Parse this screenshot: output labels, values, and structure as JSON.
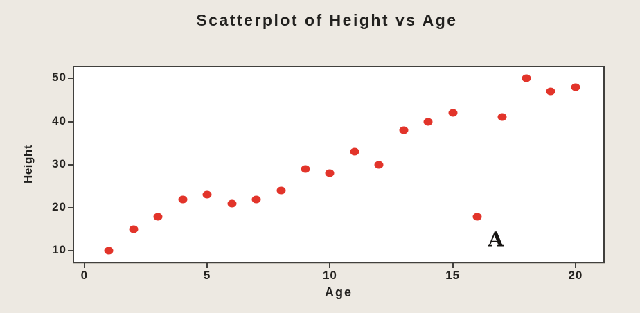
{
  "chart_data": {
    "type": "scatter",
    "title": "Scatterplot of Height vs Age",
    "xlabel": "Age",
    "ylabel": "Height",
    "points": [
      [
        1,
        10
      ],
      [
        2,
        15
      ],
      [
        3,
        18
      ],
      [
        4,
        22
      ],
      [
        5,
        23
      ],
      [
        6,
        21
      ],
      [
        7,
        22
      ],
      [
        8,
        24
      ],
      [
        9,
        29
      ],
      [
        10,
        28
      ],
      [
        11,
        33
      ],
      [
        12,
        30
      ],
      [
        13,
        38
      ],
      [
        14,
        40
      ],
      [
        15,
        42
      ],
      [
        16,
        18
      ],
      [
        17,
        41
      ],
      [
        18,
        50
      ],
      [
        19,
        47
      ],
      [
        20,
        48
      ]
    ],
    "xticks": [
      0,
      5,
      10,
      15,
      20
    ],
    "yticks": [
      10,
      20,
      30,
      40,
      50
    ],
    "xlim": [
      -0.42,
      21.13
    ],
    "ylim": [
      7.5,
      52.6
    ],
    "grid": false,
    "legend": null,
    "annotations": [
      {
        "text": "A",
        "x": 16.75,
        "y": 12.7
      }
    ],
    "colors": {
      "point": "#E2342A",
      "background": "#EDE9E2",
      "plot_background": "#FFFFFF",
      "axis": "#41403D",
      "text": "#21201E"
    }
  }
}
